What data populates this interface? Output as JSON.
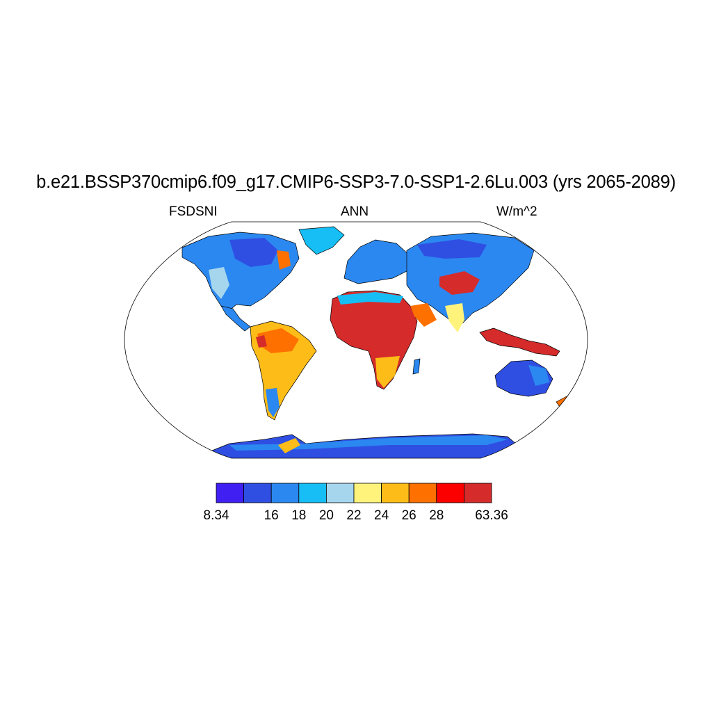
{
  "title": "b.e21.BSSP370cmip6.f09_g17.CMIP6-SSP3-7.0-SSP1-2.6Lu.003 (yrs 2065-2089)",
  "left_string": "FSDSNI",
  "center_string": "ANN",
  "right_string": "W/m^2",
  "projection": "Robinson",
  "colorbar": {
    "colors": [
      "#3f1ff2",
      "#2f4fe3",
      "#2b88f0",
      "#16bef5",
      "#a6d6ee",
      "#fff37c",
      "#fdbc17",
      "#fe7000",
      "#fc0000",
      "#d52b2b"
    ],
    "labels": [
      "8.34",
      "16",
      "18",
      "20",
      "22",
      "24",
      "26",
      "28",
      "63.36"
    ]
  }
}
